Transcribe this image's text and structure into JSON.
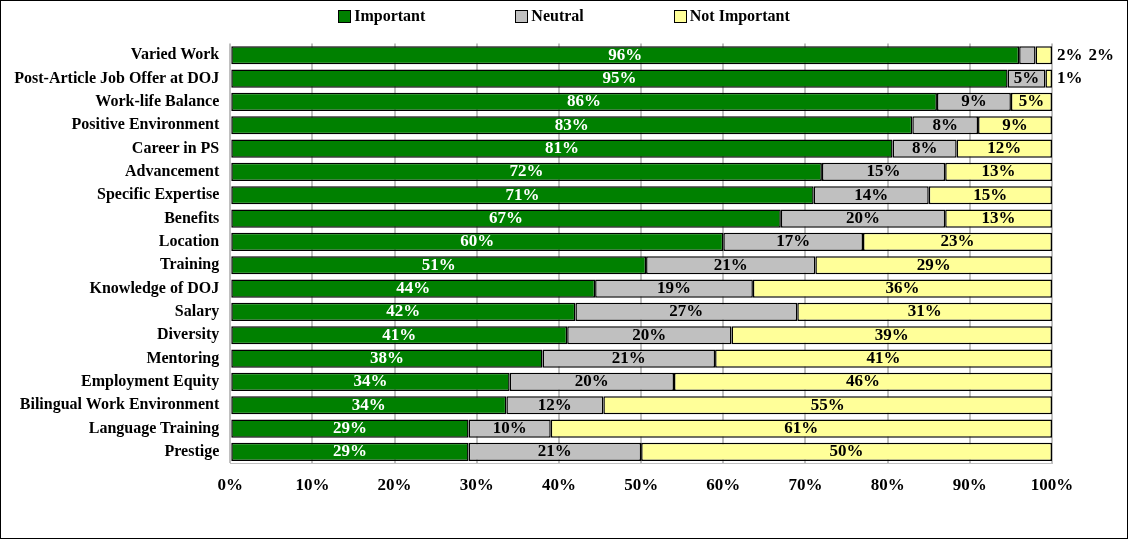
{
  "chart_data": {
    "type": "bar",
    "orientation": "horizontal",
    "stacked": true,
    "categories": [
      "Varied Work",
      "Post-Article Job Offer at DOJ",
      "Work-life Balance",
      "Positive Environment",
      "Career in PS",
      "Advancement",
      "Specific Expertise",
      "Benefits",
      "Location",
      "Training",
      "Knowledge of DOJ",
      "Salary",
      "Diversity",
      "Mentoring",
      "Employment Equity",
      "Bilingual Work Environment",
      "Language Training",
      "Prestige"
    ],
    "series": [
      {
        "name": "Important",
        "color": "#008000",
        "values": [
          96,
          94.6,
          86,
          83,
          80.6,
          72,
          71,
          67,
          60,
          50.6,
          44.4,
          42,
          41,
          38,
          34,
          33.6,
          29,
          29
        ],
        "value_labels": [
          "96%",
          "95%",
          "86%",
          "83%",
          "81%",
          "72%",
          "71%",
          "67%",
          "60%",
          "51%",
          "44%",
          "42%",
          "41%",
          "38%",
          "34%",
          "34%",
          "29%",
          "29%"
        ]
      },
      {
        "name": "Neutral",
        "color": "#c0c0c0",
        "values": [
          2,
          4.6,
          9,
          8,
          7.8,
          15,
          14,
          20,
          17,
          20.6,
          19.2,
          27,
          20,
          21,
          20,
          11.8,
          10,
          21
        ],
        "value_labels": [
          "2%",
          "5%",
          "9%",
          "8%",
          "8%",
          "15%",
          "14%",
          "20%",
          "17%",
          "21%",
          "19%",
          "27%",
          "20%",
          "21%",
          "20%",
          "12%",
          "10%",
          "21%"
        ]
      },
      {
        "name": "Not Important",
        "color": "#ffff99",
        "values": [
          2,
          0.8,
          5,
          9,
          11.6,
          13,
          15,
          13,
          23,
          28.8,
          36.4,
          31,
          39,
          41,
          46,
          54.6,
          61,
          50
        ],
        "value_labels": [
          "2%",
          "1%",
          "5%",
          "9%",
          "12%",
          "13%",
          "15%",
          "13%",
          "23%",
          "29%",
          "36%",
          "31%",
          "39%",
          "41%",
          "46%",
          "55%",
          "61%",
          "50%"
        ]
      }
    ],
    "xlim": [
      0,
      100
    ],
    "xticks": [
      {
        "value": 0,
        "label": "0%"
      },
      {
        "value": 10,
        "label": "10%"
      },
      {
        "value": 20,
        "label": "20%"
      },
      {
        "value": 30,
        "label": "30%"
      },
      {
        "value": 40,
        "label": "40%"
      },
      {
        "value": 50,
        "label": "50%"
      },
      {
        "value": 60,
        "label": "60%"
      },
      {
        "value": 70,
        "label": "70%"
      },
      {
        "value": 80,
        "label": "80%"
      },
      {
        "value": 90,
        "label": "90%"
      },
      {
        "value": 100,
        "label": "100%"
      }
    ],
    "grid": "x",
    "legend": "top"
  }
}
